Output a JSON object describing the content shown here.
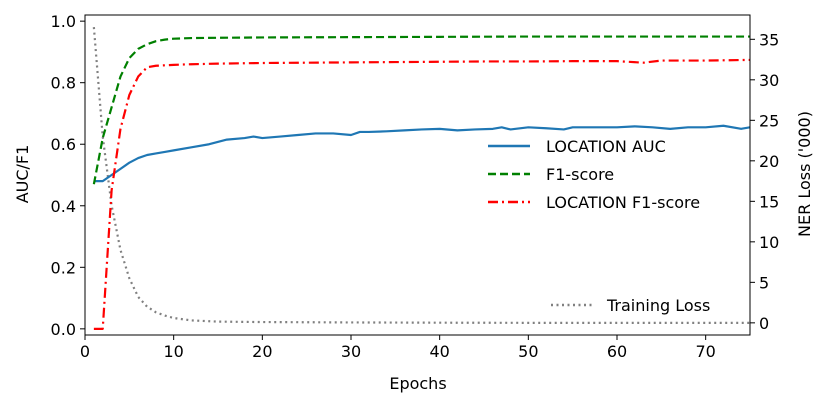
{
  "chart_data": {
    "type": "line",
    "title": "",
    "xlabel": "Epochs",
    "ylabel": "AUC/F1",
    "y2label": "NER Loss ('000)",
    "xlim": [
      0,
      75
    ],
    "ylim": [
      -0.02,
      1.02
    ],
    "y2lim": [
      -1.5,
      38
    ],
    "grid": false,
    "x_ticks": [
      0,
      10,
      20,
      30,
      40,
      50,
      60,
      70
    ],
    "y_ticks": [
      0.0,
      0.2,
      0.4,
      0.6,
      0.8,
      1.0
    ],
    "y_tick_labels": [
      "0.0",
      "0.2",
      "0.4",
      "0.6",
      "0.8",
      "1.0"
    ],
    "y2_ticks": [
      0,
      5,
      10,
      15,
      20,
      25,
      30,
      35
    ],
    "legend_position": "center-right",
    "legend2_position": "bottom-right",
    "series": [
      {
        "name": "LOCATION AUC",
        "axis": "left",
        "color": "#1f77b4",
        "style": "solid",
        "x": [
          1,
          2,
          3,
          4,
          5,
          6,
          7,
          8,
          9,
          10,
          12,
          14,
          16,
          18,
          19,
          20,
          22,
          24,
          26,
          28,
          30,
          31,
          32,
          34,
          36,
          38,
          40,
          42,
          44,
          46,
          47,
          48,
          50,
          52,
          54,
          55,
          56,
          58,
          60,
          62,
          64,
          66,
          68,
          70,
          72,
          74,
          75
        ],
        "values": [
          0.48,
          0.48,
          0.5,
          0.52,
          0.54,
          0.555,
          0.565,
          0.57,
          0.575,
          0.58,
          0.59,
          0.6,
          0.615,
          0.62,
          0.625,
          0.62,
          0.625,
          0.63,
          0.635,
          0.635,
          0.63,
          0.64,
          0.64,
          0.642,
          0.645,
          0.648,
          0.65,
          0.645,
          0.648,
          0.65,
          0.655,
          0.648,
          0.655,
          0.652,
          0.648,
          0.655,
          0.655,
          0.655,
          0.655,
          0.658,
          0.655,
          0.65,
          0.655,
          0.655,
          0.66,
          0.65,
          0.655
        ]
      },
      {
        "name": "F1-score",
        "axis": "left",
        "color": "#008000",
        "style": "dashed",
        "x": [
          1,
          2,
          3,
          4,
          5,
          6,
          7,
          8,
          9,
          10,
          12,
          15,
          20,
          30,
          40,
          50,
          60,
          70,
          75
        ],
        "values": [
          0.47,
          0.62,
          0.72,
          0.82,
          0.88,
          0.91,
          0.925,
          0.935,
          0.94,
          0.943,
          0.945,
          0.946,
          0.947,
          0.948,
          0.949,
          0.95,
          0.95,
          0.95,
          0.95
        ]
      },
      {
        "name": "LOCATION F1-score",
        "axis": "left",
        "color": "#ff0000",
        "style": "dashdot",
        "x": [
          1,
          2,
          3,
          4,
          5,
          6,
          7,
          8,
          10,
          12,
          15,
          20,
          25,
          30,
          35,
          40,
          45,
          50,
          55,
          60,
          63,
          65,
          70,
          75
        ],
        "values": [
          0.0,
          0.0,
          0.45,
          0.65,
          0.76,
          0.82,
          0.85,
          0.855,
          0.858,
          0.86,
          0.862,
          0.864,
          0.865,
          0.866,
          0.867,
          0.868,
          0.869,
          0.869,
          0.87,
          0.87,
          0.865,
          0.872,
          0.872,
          0.874
        ]
      },
      {
        "name": "Training Loss",
        "axis": "right",
        "color": "#808080",
        "style": "dotted",
        "x": [
          1,
          2,
          3,
          4,
          5,
          6,
          7,
          8,
          9,
          10,
          12,
          15,
          20,
          30,
          40,
          50,
          60,
          70,
          75
        ],
        "values": [
          36.5,
          23,
          14.5,
          9,
          5.5,
          3.2,
          2.0,
          1.3,
          0.9,
          0.6,
          0.3,
          0.15,
          0.1,
          0.05,
          0.02,
          0.0,
          0.0,
          0.0,
          0.0
        ]
      }
    ]
  }
}
